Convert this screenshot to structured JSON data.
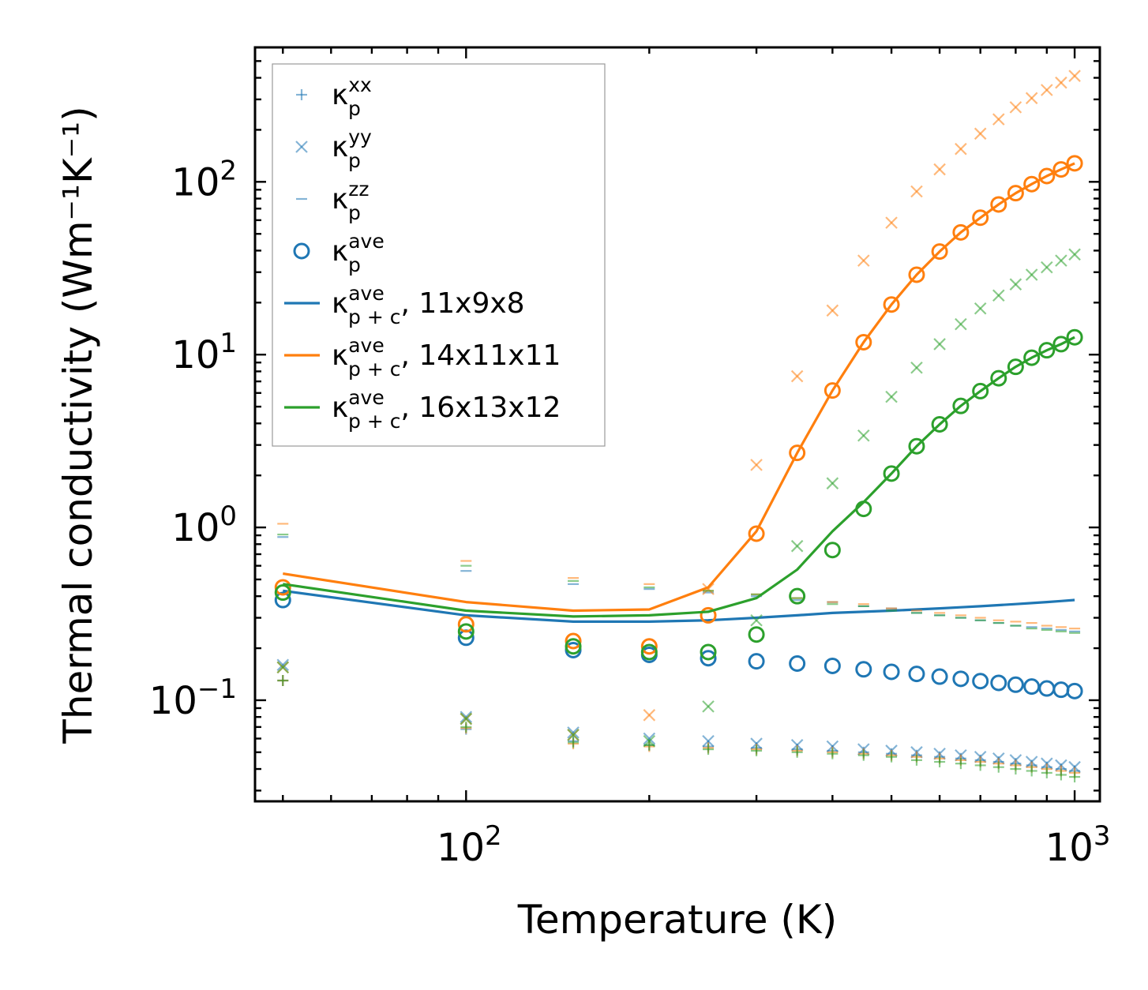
{
  "chart_data": {
    "type": "scatter",
    "xscale": "log",
    "yscale": "log",
    "xlim": [
      45,
      1100
    ],
    "ylim": [
      0.026,
      600
    ],
    "xlabel": "Temperature (K)",
    "ylabel": "Thermal conductivity (Wm⁻¹K⁻¹)",
    "xticks": [
      {
        "value": 100,
        "base": "10",
        "exp": "2"
      },
      {
        "value": 1000,
        "base": "10",
        "exp": "3"
      }
    ],
    "yticks": [
      {
        "value": 0.1,
        "base": "10",
        "exp": "−1"
      },
      {
        "value": 1,
        "base": "10",
        "exp": "0"
      },
      {
        "value": 10,
        "base": "10",
        "exp": "1"
      },
      {
        "value": 100,
        "base": "10",
        "exp": "2"
      }
    ],
    "colors": {
      "blue": "#1f77b4",
      "orange": "#ff7f0e",
      "green": "#2ca02c"
    },
    "legend": {
      "placement": "top-left",
      "entries": [
        {
          "kind": "plus",
          "color": "blue",
          "base": "κ",
          "sup": "xx",
          "sub": "p",
          "suffix": ""
        },
        {
          "kind": "cross",
          "color": "blue",
          "base": "κ",
          "sup": "yy",
          "sub": "p",
          "suffix": ""
        },
        {
          "kind": "dash",
          "color": "blue",
          "base": "κ",
          "sup": "zz",
          "sub": "p",
          "suffix": ""
        },
        {
          "kind": "circle",
          "color": "blue",
          "base": "κ",
          "sup": "ave",
          "sub": "p",
          "suffix": ""
        },
        {
          "kind": "line",
          "color": "blue",
          "base": "κ",
          "sup": "ave",
          "sub": "p + c",
          "suffix": ", 11x9x8"
        },
        {
          "kind": "line",
          "color": "orange",
          "base": "κ",
          "sup": "ave",
          "sub": "p + c",
          "suffix": ", 14x11x11"
        },
        {
          "kind": "line",
          "color": "green",
          "base": "κ",
          "sup": "ave",
          "sub": "p + c",
          "suffix": ", 16x13x12"
        }
      ]
    },
    "x": [
      50,
      100,
      150,
      200,
      250,
      300,
      350,
      400,
      450,
      500,
      550,
      600,
      650,
      700,
      750,
      800,
      850,
      900,
      950,
      1000
    ],
    "series": [
      {
        "name": "11x9x8",
        "color": "blue",
        "kxx": [
          0.13,
          0.068,
          0.058,
          0.055,
          0.054,
          0.053,
          0.052,
          0.051,
          0.05,
          0.049,
          0.048,
          0.047,
          0.046,
          0.045,
          0.044,
          0.043,
          0.042,
          0.041,
          0.04,
          0.039
        ],
        "kyy": [
          0.16,
          0.08,
          0.065,
          0.06,
          0.058,
          0.056,
          0.055,
          0.054,
          0.052,
          0.051,
          0.05,
          0.049,
          0.048,
          0.047,
          0.046,
          0.045,
          0.044,
          0.043,
          0.042,
          0.041
        ],
        "kzz": [
          0.88,
          0.56,
          0.47,
          0.44,
          0.42,
          0.4,
          0.38,
          0.37,
          0.35,
          0.34,
          0.32,
          0.31,
          0.3,
          0.29,
          0.28,
          0.27,
          0.265,
          0.26,
          0.255,
          0.25
        ],
        "kave": [
          0.38,
          0.23,
          0.195,
          0.183,
          0.175,
          0.168,
          0.163,
          0.158,
          0.151,
          0.146,
          0.142,
          0.137,
          0.133,
          0.129,
          0.126,
          0.123,
          0.12,
          0.117,
          0.115,
          0.113
        ],
        "kpc": [
          0.43,
          0.31,
          0.285,
          0.285,
          0.29,
          0.3,
          0.31,
          0.32,
          0.325,
          0.33,
          0.335,
          0.34,
          0.345,
          0.35,
          0.355,
          0.36,
          0.365,
          0.37,
          0.375,
          0.38
        ]
      },
      {
        "name": "14x11x11",
        "color": "orange",
        "kxx": [
          0.13,
          0.069,
          0.056,
          0.054,
          0.053,
          0.052,
          0.051,
          0.05,
          0.049,
          0.048,
          0.047,
          0.046,
          0.045,
          0.044,
          0.043,
          0.042,
          0.041,
          0.04,
          0.039,
          0.038
        ],
        "kyy": [
          0.155,
          0.078,
          0.063,
          0.082,
          0.44,
          2.3,
          7.5,
          18,
          35,
          58,
          88,
          118,
          155,
          190,
          230,
          270,
          305,
          340,
          375,
          410
        ],
        "kzz": [
          1.05,
          0.64,
          0.51,
          0.47,
          0.43,
          0.41,
          0.39,
          0.37,
          0.36,
          0.34,
          0.33,
          0.32,
          0.31,
          0.3,
          0.29,
          0.285,
          0.28,
          0.27,
          0.265,
          0.26
        ],
        "kave": [
          0.45,
          0.275,
          0.22,
          0.205,
          0.31,
          0.92,
          2.7,
          6.2,
          11.8,
          19.5,
          29,
          39.5,
          51,
          62,
          74,
          86,
          97,
          108,
          118,
          128
        ],
        "kpc": [
          0.54,
          0.37,
          0.33,
          0.335,
          0.45,
          0.95,
          2.7,
          6.2,
          11.8,
          19.5,
          29,
          39.5,
          51,
          62,
          74,
          86,
          97,
          108,
          118,
          128
        ]
      },
      {
        "name": "16x13x12",
        "color": "green",
        "kxx": [
          0.13,
          0.07,
          0.057,
          0.055,
          0.052,
          0.051,
          0.05,
          0.049,
          0.048,
          0.047,
          0.045,
          0.044,
          0.043,
          0.042,
          0.041,
          0.04,
          0.039,
          0.038,
          0.037,
          0.036
        ],
        "kyy": [
          0.155,
          0.078,
          0.063,
          0.058,
          0.092,
          0.29,
          0.78,
          1.8,
          3.4,
          5.7,
          8.4,
          11.5,
          15,
          18.5,
          22,
          25.5,
          29,
          32,
          35,
          38
        ],
        "kzz": [
          0.91,
          0.6,
          0.49,
          0.45,
          0.43,
          0.41,
          0.39,
          0.36,
          0.35,
          0.33,
          0.32,
          0.31,
          0.3,
          0.29,
          0.28,
          0.27,
          0.26,
          0.255,
          0.25,
          0.245
        ],
        "kave": [
          0.42,
          0.25,
          0.205,
          0.19,
          0.19,
          0.24,
          0.4,
          0.74,
          1.28,
          2.05,
          2.95,
          3.95,
          5.05,
          6.15,
          7.3,
          8.5,
          9.6,
          10.6,
          11.5,
          12.6
        ],
        "kpc": [
          0.47,
          0.33,
          0.305,
          0.31,
          0.325,
          0.39,
          0.57,
          0.95,
          1.4,
          2.05,
          2.95,
          3.95,
          5.05,
          6.15,
          7.3,
          8.5,
          9.6,
          10.6,
          11.5,
          12.6
        ]
      }
    ]
  }
}
